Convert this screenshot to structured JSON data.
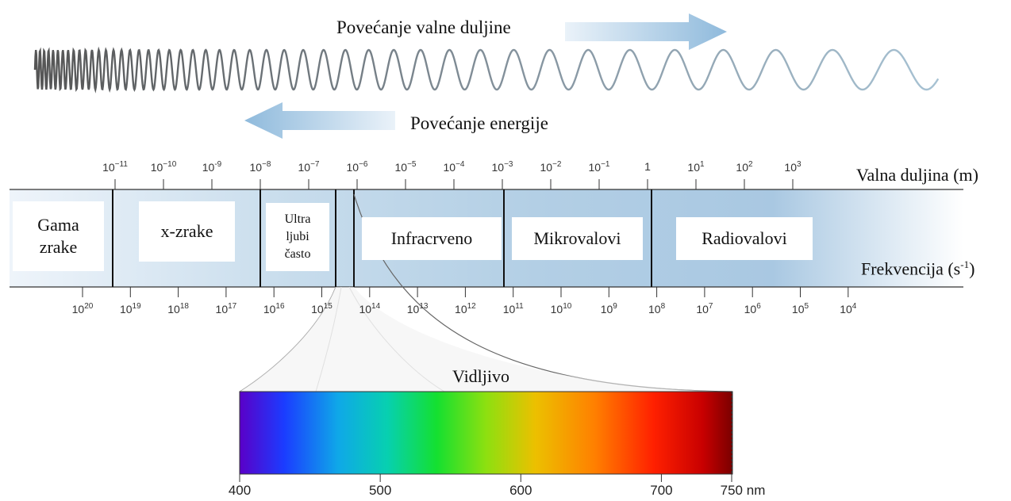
{
  "wave_title": "Povećanje valne duljine",
  "energy_title": "Povećanje energije",
  "wavelength_axis": {
    "label": "Valna duljina (m)",
    "ticks": [
      {
        "base": "10",
        "exp": "−11"
      },
      {
        "base": "10",
        "exp": "−10"
      },
      {
        "base": "10",
        "exp": "-9"
      },
      {
        "base": "10",
        "exp": "−8"
      },
      {
        "base": "10",
        "exp": "−7"
      },
      {
        "base": "10",
        "exp": "−6"
      },
      {
        "base": "10",
        "exp": "−5"
      },
      {
        "base": "10",
        "exp": "−4"
      },
      {
        "base": "10",
        "exp": "−3"
      },
      {
        "base": "10",
        "exp": "−2"
      },
      {
        "base": "10",
        "exp": "−1"
      },
      {
        "base": "1",
        "exp": ""
      },
      {
        "base": "10",
        "exp": "1"
      },
      {
        "base": "10",
        "exp": "2"
      },
      {
        "base": "10",
        "exp": "3"
      }
    ]
  },
  "frequency_axis": {
    "label_main": "Frekvencija (s",
    "label_sup": "-1",
    "label_end": ")",
    "ticks": [
      {
        "base": "10",
        "exp": "20"
      },
      {
        "base": "10",
        "exp": "19"
      },
      {
        "base": "10",
        "exp": "18"
      },
      {
        "base": "10",
        "exp": "17"
      },
      {
        "base": "10",
        "exp": "16"
      },
      {
        "base": "10",
        "exp": "15"
      },
      {
        "base": "10",
        "exp": "14"
      },
      {
        "base": "10",
        "exp": "13"
      },
      {
        "base": "10",
        "exp": "12"
      },
      {
        "base": "10",
        "exp": "11"
      },
      {
        "base": "10",
        "exp": "10"
      },
      {
        "base": "10",
        "exp": "9"
      },
      {
        "base": "10",
        "exp": "8"
      },
      {
        "base": "10",
        "exp": "7"
      },
      {
        "base": "10",
        "exp": "6"
      },
      {
        "base": "10",
        "exp": "5"
      },
      {
        "base": "10",
        "exp": "4"
      }
    ]
  },
  "regions": {
    "gamma": "Gama\nzrake",
    "xray": "x-zrake",
    "uv": "Ultra\nljubi\nčasto",
    "infrared": "Infracrveno",
    "microwave": "Mikrovalovi",
    "radio": "Radiovalovi"
  },
  "visible": {
    "title": "Vidljivo",
    "ticks": [
      "400",
      "500",
      "600",
      "700",
      "750 nm"
    ],
    "tick_values_nm": [
      400,
      500,
      600,
      700,
      750
    ]
  },
  "colors": {
    "band_dark": "#a9c8e2",
    "band_light": "#e9f1f8",
    "arrow": "#9cc2e0",
    "wave": "#707070"
  }
}
